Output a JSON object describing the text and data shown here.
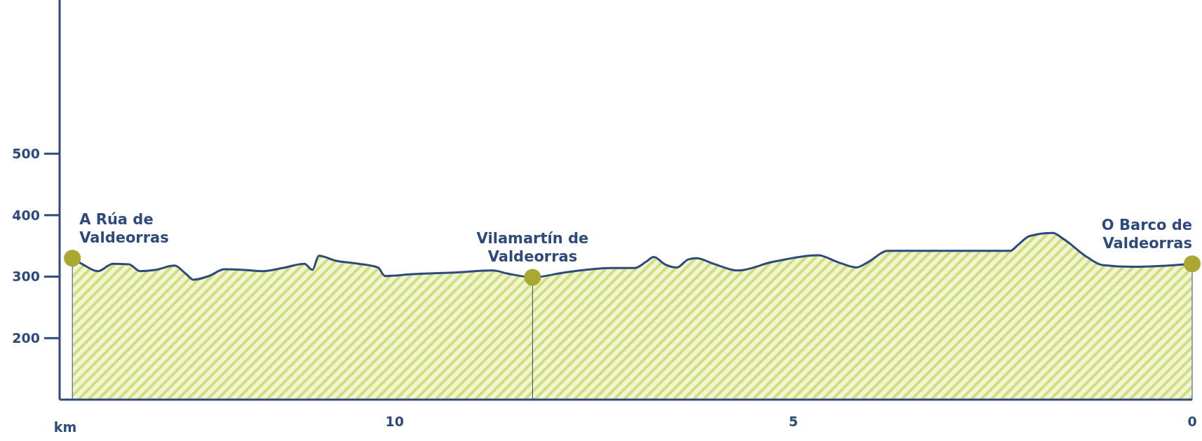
{
  "chart_data": {
    "type": "area",
    "xlabel": "km",
    "xlim": [
      14.2,
      0
    ],
    "xticks": [
      10,
      5,
      0
    ],
    "ylim": [
      100,
      750
    ],
    "yticks": [
      200,
      300,
      400,
      500
    ],
    "series": [
      {
        "color": "#2e4a7d",
        "x": [
          14.04,
          13.91,
          13.72,
          13.53,
          13.33,
          13.19,
          13.0,
          12.76,
          12.62,
          12.52,
          12.33,
          12.13,
          11.89,
          11.65,
          11.41,
          11.13,
          11.03,
          10.95,
          10.74,
          10.45,
          10.21,
          10.12,
          9.78,
          9.21,
          8.77,
          8.58,
          8.27,
          7.86,
          7.28,
          6.99,
          6.85,
          6.75,
          6.61,
          6.46,
          6.32,
          6.22,
          5.98,
          5.7,
          5.26,
          4.69,
          4.45,
          4.21,
          4.06,
          3.82,
          3.44,
          2.28,
          2.19,
          2.04,
          1.75,
          1.61,
          1.32,
          1.13,
          0.74,
          0
        ],
        "values": [
          330,
          320,
          309,
          321,
          320,
          309,
          311,
          318,
          305,
          295,
          301,
          312,
          311,
          309,
          314,
          321,
          311,
          334,
          326,
          321,
          315,
          301,
          304,
          307,
          310,
          305,
          299,
          307,
          314,
          314,
          324,
          332,
          320,
          315,
          328,
          330,
          320,
          310,
          324,
          335,
          324,
          315,
          324,
          342,
          342,
          342,
          351,
          366,
          371,
          361,
          332,
          319,
          316,
          321
        ]
      },
      {
        "type": "scatter",
        "color": "#a9a833",
        "marker": "circle",
        "x": [
          14.04,
          8.27,
          0
        ],
        "values": [
          330,
          299,
          321
        ]
      }
    ],
    "annotations": [
      {
        "text": "A Rúa de\nValdeorras",
        "x": 14.04,
        "y": 330
      },
      {
        "text": "Vilamartín de\nValdeorras",
        "x": 8.27,
        "y": 299
      },
      {
        "text": "O Barco de\nValdeorras",
        "x": 0,
        "y": 321
      }
    ]
  }
}
